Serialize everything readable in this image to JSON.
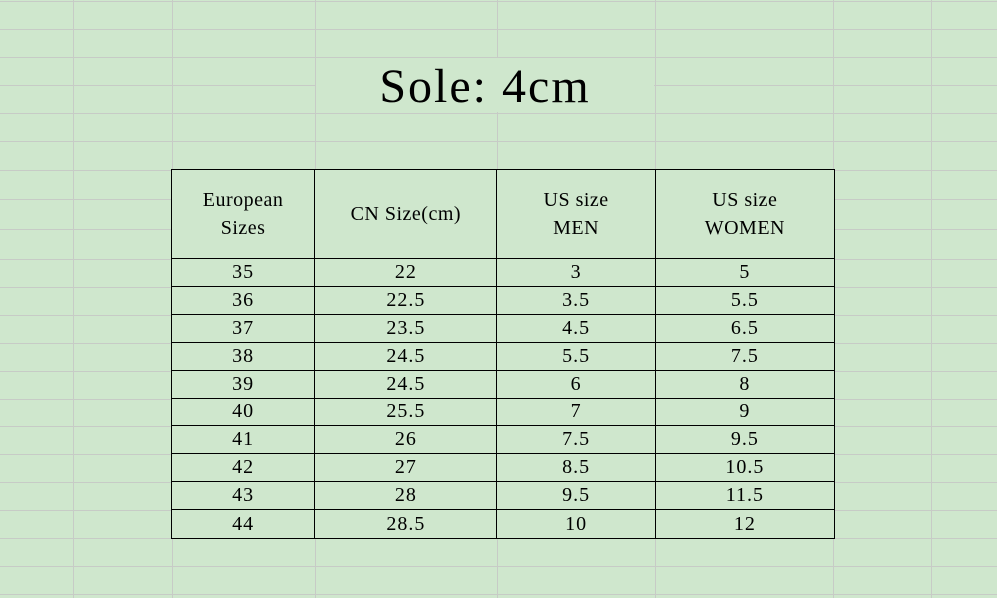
{
  "page": {
    "title": "Sole: 4cm"
  },
  "size_chart": {
    "columns": [
      "European\nSizes",
      "CN Size(cm)",
      "US size\nMEN",
      "US size\nWOMEN"
    ],
    "rows": [
      [
        "35",
        "22",
        "3",
        "5"
      ],
      [
        "36",
        "22.5",
        "3.5",
        "5.5"
      ],
      [
        "37",
        "23.5",
        "4.5",
        "6.5"
      ],
      [
        "38",
        "24.5",
        "5.5",
        "7.5"
      ],
      [
        "39",
        "24.5",
        "6",
        "8"
      ],
      [
        "40",
        "25.5",
        "7",
        "9"
      ],
      [
        "41",
        "26",
        "7.5",
        "9.5"
      ],
      [
        "42",
        "27",
        "8.5",
        "10.5"
      ],
      [
        "43",
        "28",
        "9.5",
        "11.5"
      ],
      [
        "44",
        "28.5",
        "10",
        "12"
      ]
    ]
  },
  "colors": {
    "background": "#cfe7cd",
    "gridline": "#c7cbc6",
    "table_border": "#000000",
    "text": "#000000"
  }
}
